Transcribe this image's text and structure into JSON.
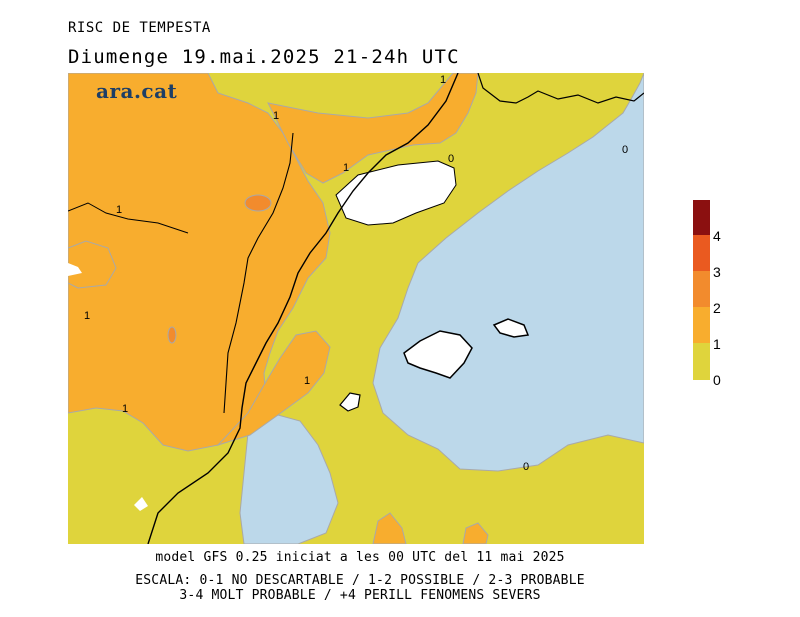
{
  "header": {
    "title": "RISC DE TEMPESTA",
    "subtitle": "Diumenge  19.mai.2025 21-24h UTC"
  },
  "logo": {
    "text": "ara.cat"
  },
  "map": {
    "contour_labels": [
      "1",
      "1",
      "1",
      "1",
      "1",
      "1",
      "1",
      "0",
      "0",
      "0"
    ],
    "colors": {
      "sea": "#bcd8ea",
      "level_0_1": "#dfd43c",
      "level_1_2": "#f8ad2e",
      "level_2_3": "#f28b2d",
      "level_3_4": "#ea5a20",
      "level_4_plus": "#8b1010",
      "coast": "#000000",
      "contour": "#a9a9a9"
    }
  },
  "legend": {
    "labels": [
      "4",
      "3",
      "2",
      "1",
      "0"
    ],
    "colors": [
      "#8b1010",
      "#ea5a20",
      "#f28b2d",
      "#f8ad2e",
      "#dfd43c"
    ]
  },
  "footer": {
    "line1": "model GFS 0.25 iniciat a les 00 UTC del 11 mai 2025",
    "line2": "ESCALA: 0-1 NO DESCARTABLE / 1-2 POSSIBLE / 2-3 PROBABLE",
    "line3": "3-4 MOLT PROBABLE / +4 PERILL FENOMENS SEVERS"
  }
}
